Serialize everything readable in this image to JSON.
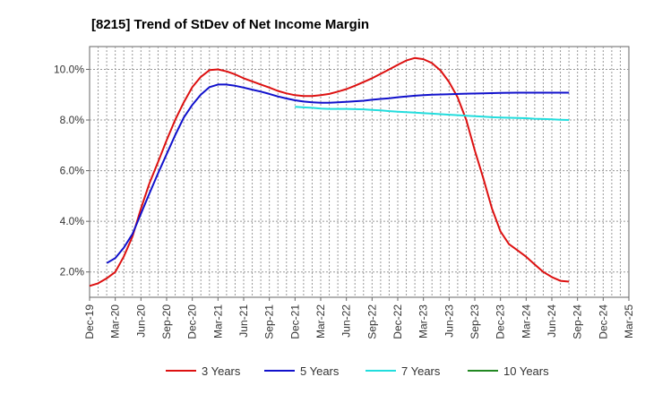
{
  "chart_data": {
    "type": "line",
    "title": "[8215]  Trend of StDev of Net Income Margin",
    "x_ticks": [
      "Dec-19",
      "Mar-20",
      "Jun-20",
      "Sep-20",
      "Dec-20",
      "Mar-21",
      "Jun-21",
      "Sep-21",
      "Dec-21",
      "Mar-22",
      "Jun-22",
      "Sep-22",
      "Dec-22",
      "Mar-23",
      "Jun-23",
      "Sep-23",
      "Dec-23",
      "Mar-24",
      "Jun-24",
      "Sep-24",
      "Dec-24",
      "Mar-25"
    ],
    "y_ticks": [
      "2.0%",
      "4.0%",
      "6.0%",
      "8.0%",
      "10.0%"
    ],
    "y_tick_values": [
      2,
      4,
      6,
      8,
      10
    ],
    "ylim": [
      1.0,
      10.9
    ],
    "x_range_quarters": [
      0,
      21
    ],
    "grid": true,
    "legend_position": "bottom",
    "series": [
      {
        "name": "3 Years",
        "color": "#dd1111",
        "points": [
          [
            0,
            1.45
          ],
          [
            0.33,
            1.55
          ],
          [
            0.67,
            1.75
          ],
          [
            1,
            2.0
          ],
          [
            1.33,
            2.6
          ],
          [
            1.67,
            3.4
          ],
          [
            2,
            4.5
          ],
          [
            2.33,
            5.5
          ],
          [
            2.67,
            6.35
          ],
          [
            3,
            7.2
          ],
          [
            3.33,
            8.0
          ],
          [
            3.67,
            8.7
          ],
          [
            4,
            9.3
          ],
          [
            4.33,
            9.7
          ],
          [
            4.67,
            9.97
          ],
          [
            5,
            10.0
          ],
          [
            5.33,
            9.92
          ],
          [
            5.67,
            9.8
          ],
          [
            6,
            9.65
          ],
          [
            6.67,
            9.4
          ],
          [
            7,
            9.28
          ],
          [
            7.33,
            9.15
          ],
          [
            7.67,
            9.05
          ],
          [
            8,
            8.98
          ],
          [
            8.33,
            8.95
          ],
          [
            8.67,
            8.95
          ],
          [
            9,
            8.98
          ],
          [
            9.33,
            9.03
          ],
          [
            9.67,
            9.12
          ],
          [
            10,
            9.22
          ],
          [
            10.33,
            9.35
          ],
          [
            10.67,
            9.5
          ],
          [
            11,
            9.65
          ],
          [
            11.33,
            9.82
          ],
          [
            11.67,
            10.0
          ],
          [
            12,
            10.18
          ],
          [
            12.33,
            10.35
          ],
          [
            12.67,
            10.45
          ],
          [
            13,
            10.4
          ],
          [
            13.33,
            10.25
          ],
          [
            13.67,
            9.95
          ],
          [
            14,
            9.5
          ],
          [
            14.33,
            8.9
          ],
          [
            14.67,
            8.0
          ],
          [
            15,
            6.8
          ],
          [
            15.33,
            5.7
          ],
          [
            15.67,
            4.5
          ],
          [
            16,
            3.6
          ],
          [
            16.33,
            3.1
          ],
          [
            16.67,
            2.85
          ],
          [
            17,
            2.6
          ],
          [
            17.33,
            2.3
          ],
          [
            17.67,
            2.0
          ],
          [
            18,
            1.8
          ],
          [
            18.33,
            1.65
          ],
          [
            18.67,
            1.62
          ]
        ]
      },
      {
        "name": "5 Years",
        "color": "#1111cc",
        "points": [
          [
            0.67,
            2.35
          ],
          [
            1,
            2.55
          ],
          [
            1.33,
            2.95
          ],
          [
            1.67,
            3.5
          ],
          [
            2,
            4.3
          ],
          [
            2.33,
            5.1
          ],
          [
            2.67,
            5.9
          ],
          [
            3,
            6.65
          ],
          [
            3.33,
            7.4
          ],
          [
            3.67,
            8.1
          ],
          [
            4,
            8.6
          ],
          [
            4.33,
            9.0
          ],
          [
            4.67,
            9.3
          ],
          [
            5,
            9.4
          ],
          [
            5.33,
            9.4
          ],
          [
            5.67,
            9.35
          ],
          [
            6,
            9.28
          ],
          [
            6.33,
            9.2
          ],
          [
            6.67,
            9.12
          ],
          [
            7,
            9.03
          ],
          [
            7.33,
            8.93
          ],
          [
            7.67,
            8.85
          ],
          [
            8,
            8.78
          ],
          [
            8.33,
            8.73
          ],
          [
            8.67,
            8.7
          ],
          [
            9,
            8.68
          ],
          [
            9.33,
            8.68
          ],
          [
            9.67,
            8.7
          ],
          [
            10,
            8.72
          ],
          [
            10.33,
            8.74
          ],
          [
            10.67,
            8.76
          ],
          [
            11,
            8.8
          ],
          [
            11.33,
            8.83
          ],
          [
            11.67,
            8.86
          ],
          [
            12,
            8.9
          ],
          [
            12.33,
            8.93
          ],
          [
            12.67,
            8.96
          ],
          [
            13,
            8.98
          ],
          [
            13.33,
            9.0
          ],
          [
            14,
            9.02
          ],
          [
            14.67,
            9.04
          ],
          [
            15.33,
            9.05
          ],
          [
            16,
            9.07
          ],
          [
            16.67,
            9.08
          ],
          [
            17.33,
            9.08
          ],
          [
            18,
            9.08
          ],
          [
            18.67,
            9.08
          ]
        ]
      },
      {
        "name": "7 Years",
        "color": "#22dddd",
        "points": [
          [
            8,
            8.52
          ],
          [
            8.33,
            8.5
          ],
          [
            8.67,
            8.48
          ],
          [
            9,
            8.45
          ],
          [
            9.33,
            8.44
          ],
          [
            9.67,
            8.44
          ],
          [
            10,
            8.44
          ],
          [
            10.33,
            8.43
          ],
          [
            10.67,
            8.42
          ],
          [
            11,
            8.4
          ],
          [
            11.33,
            8.38
          ],
          [
            11.67,
            8.35
          ],
          [
            12,
            8.33
          ],
          [
            12.33,
            8.31
          ],
          [
            12.67,
            8.29
          ],
          [
            13,
            8.27
          ],
          [
            13.33,
            8.25
          ],
          [
            13.67,
            8.23
          ],
          [
            14,
            8.21
          ],
          [
            14.33,
            8.19
          ],
          [
            14.67,
            8.17
          ],
          [
            15,
            8.15
          ],
          [
            15.33,
            8.13
          ],
          [
            15.67,
            8.11
          ],
          [
            16,
            8.1
          ],
          [
            16.33,
            8.09
          ],
          [
            16.67,
            8.08
          ],
          [
            17,
            8.07
          ],
          [
            17.33,
            8.05
          ],
          [
            17.67,
            8.04
          ],
          [
            18,
            8.03
          ],
          [
            18.33,
            8.01
          ],
          [
            18.67,
            8.0
          ]
        ]
      },
      {
        "name": "10 Years",
        "color": "#228822",
        "points": []
      }
    ]
  }
}
